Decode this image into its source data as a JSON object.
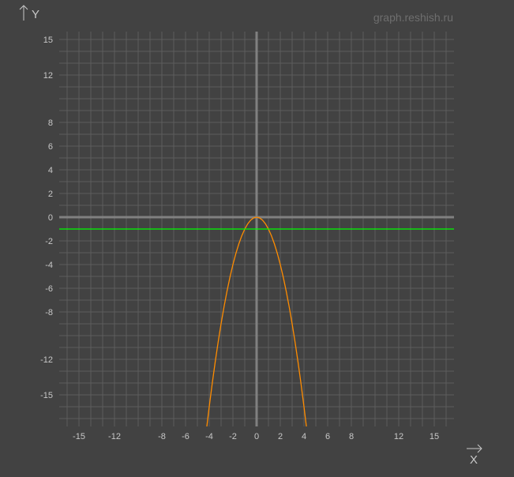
{
  "watermark": "graph.reshish.ru",
  "chart_data": {
    "type": "line",
    "xlabel": "X",
    "ylabel": "Y",
    "xlim": [
      -16.67,
      16.67
    ],
    "ylim": [
      -17.67,
      15.67
    ],
    "grid": true,
    "grid_step": 1,
    "x_ticks": [
      -15,
      -12,
      -8,
      -6,
      -4,
      -2,
      0,
      2,
      4,
      6,
      8,
      12,
      15
    ],
    "y_ticks": [
      15,
      12,
      8,
      6,
      4,
      2,
      0,
      -2,
      -4,
      -6,
      -8,
      -12,
      -15
    ],
    "colors": {
      "background": "#424242",
      "grid": "#5c5c5c",
      "axis": "#808080",
      "text": "#c8c8c8"
    },
    "series": [
      {
        "color": "#ff8c00",
        "x": [
          -4.25,
          -4,
          -3.75,
          -3.5,
          -3.25,
          -3,
          -2.75,
          -2.5,
          -2.25,
          -2,
          -1.75,
          -1.5,
          -1.25,
          -1,
          -0.75,
          -0.5,
          -0.25,
          0,
          0.25,
          0.5,
          0.75,
          1,
          1.25,
          1.5,
          1.75,
          2,
          2.25,
          2.5,
          2.75,
          3,
          3.25,
          3.5,
          3.75,
          4,
          4.25
        ],
        "y": [
          -18.0625,
          -16,
          -14.0625,
          -12.25,
          -10.5625,
          -9,
          -7.5625,
          -6.25,
          -5.0625,
          -4,
          -3.0625,
          -2.25,
          -1.5625,
          -1,
          -0.5625,
          -0.25,
          -0.0625,
          0,
          -0.0625,
          -0.25,
          -0.5625,
          -1,
          -1.5625,
          -2.25,
          -3.0625,
          -4,
          -5.0625,
          -6.25,
          -7.5625,
          -9,
          -10.5625,
          -12.25,
          -14.0625,
          -16,
          -18.0625
        ]
      },
      {
        "color": "#00ff00",
        "x": [
          -16.67,
          16.67
        ],
        "y": [
          -1,
          -1
        ]
      }
    ]
  }
}
